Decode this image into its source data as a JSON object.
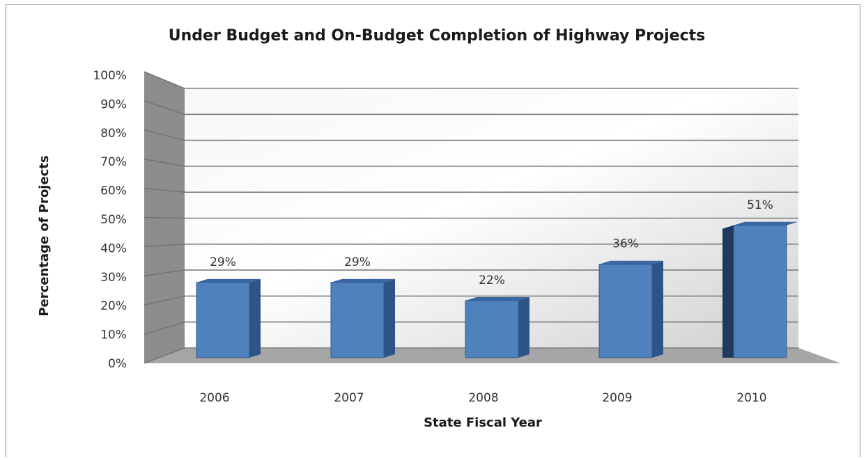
{
  "chart_data": {
    "type": "bar",
    "title": "Under Budget and On-Budget Completion of Highway Projects",
    "xlabel": "State Fiscal Year",
    "ylabel": "Percentage of Projects",
    "categories": [
      "2006",
      "2007",
      "2008",
      "2009",
      "2010"
    ],
    "values": [
      29,
      29,
      22,
      36,
      51
    ],
    "data_labels": [
      "29%",
      "29%",
      "22%",
      "36%",
      "51%"
    ],
    "y_ticks": [
      "0%",
      "10%",
      "20%",
      "30%",
      "40%",
      "50%",
      "60%",
      "70%",
      "80%",
      "90%",
      "100%"
    ],
    "ylim": [
      0,
      100
    ],
    "grid": true,
    "legend": "none",
    "style": "3d-column",
    "colors": {
      "bar_front": "#4f81bd",
      "bar_top": "#3a67a3",
      "bar_side": "#1f3a5f",
      "wall_light": "#ffffff",
      "wall_dark": "#c9c9c9",
      "floor": "#a6a6a6",
      "side_wall": "#8c8c8c",
      "gridline": "#7f7f7f"
    }
  }
}
